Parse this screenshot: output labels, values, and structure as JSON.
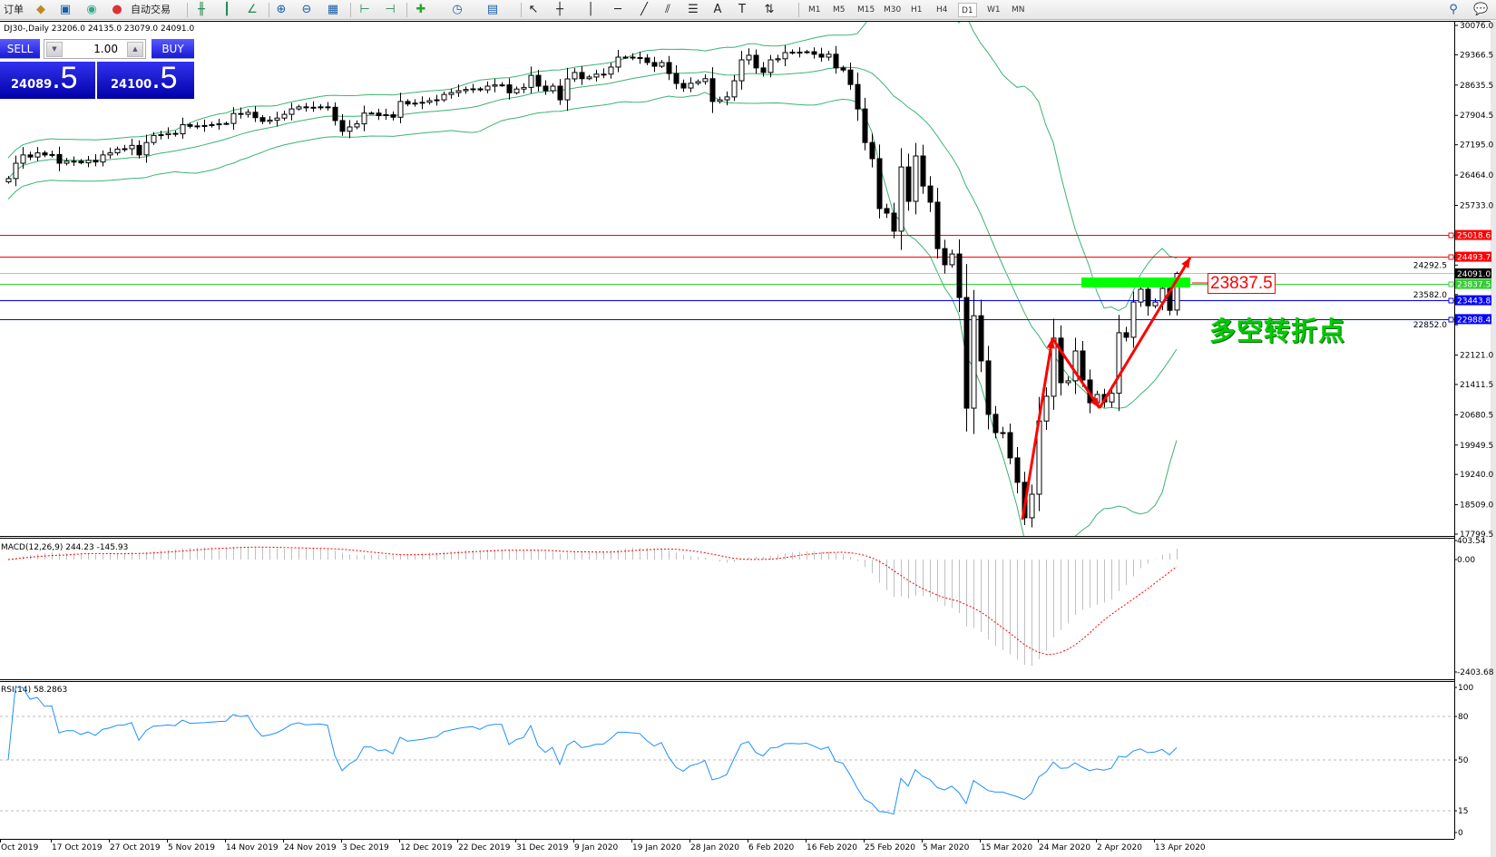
{
  "toolbar": {
    "new_order_label": "订单",
    "autotrade_label": "自动交易",
    "timeframes": [
      "M1",
      "M5",
      "M15",
      "M30",
      "H1",
      "H4",
      "D1",
      "W1",
      "MN"
    ],
    "active_timeframe": "D1",
    "icons": [
      "new-order-icon",
      "market-watch-icon",
      "navigator-icon",
      "signal-icon",
      "autotrade-icon",
      "bar-chart-icon",
      "candlestick-icon",
      "line-chart-icon",
      "zoom-in-icon",
      "zoom-out-icon",
      "tile-windows-icon",
      "chart-shift-icon",
      "autoscroll-icon",
      "indicators-icon",
      "periods-icon",
      "templates-icon",
      "cursor-icon",
      "crosshair-icon",
      "vertical-line-icon",
      "horizontal-line-icon",
      "trendline-icon",
      "channel-icon",
      "fibonacci-icon",
      "text-icon",
      "text-label-icon",
      "arrows-icon",
      "search-icon",
      "chat-icon"
    ]
  },
  "chart": {
    "title": "DJ30-,Daily  23206.0 24135.0 23079.0 24091.0",
    "symbol": "DJ30-",
    "period": "Daily",
    "last_ohlc": {
      "open": 23206.0,
      "high": 24135.0,
      "low": 23079.0,
      "close": 24091.0
    }
  },
  "one_click": {
    "sell_label": "SELL",
    "buy_label": "BUY",
    "lots": "1.00",
    "sell_price_main": "24089",
    "sell_price_frac": ".5",
    "buy_price_main": "24100",
    "buy_price_frac": ".5"
  },
  "price_axis": {
    "labels": [
      "30076.0",
      "29366.5",
      "28635.5",
      "27904.5",
      "27195.0",
      "26464.0",
      "25733.0",
      "24292.5",
      "23582.0",
      "22852.0",
      "22121.0",
      "21411.5",
      "20680.5",
      "19949.5",
      "19240.0",
      "18509.0",
      "17799.5"
    ],
    "range": [
      17799.5,
      30076.0
    ]
  },
  "levels": [
    {
      "value": "25018.6",
      "color": "#ff0000"
    },
    {
      "value": "24493.7",
      "color": "#ff0000"
    },
    {
      "value": "24091.0",
      "color": "#000000",
      "line": "#c0c0c0"
    },
    {
      "value": "23837.5",
      "color": "#33cc33"
    },
    {
      "value": "23443.8",
      "color": "#0000ff"
    },
    {
      "value": "22988.4",
      "color": "#0000ff"
    }
  ],
  "annotations": {
    "price_label": "23837.5",
    "text": "多空转折点",
    "text_color": "#00cc00",
    "arrow_color": "#ff0000",
    "zone_color": "#00ff00"
  },
  "macd": {
    "label": "MACD(12,26,9) 244.23 -145.93",
    "axis": [
      "403.54",
      "0.00",
      "-2403.68"
    ],
    "range": [
      -2403.68,
      403.54
    ]
  },
  "rsi": {
    "label": "RSI(14) 58.2863",
    "axis": [
      "100",
      "80",
      "50",
      "15",
      "0"
    ],
    "levels": [
      80,
      50,
      15
    ],
    "color": "#1e90ff"
  },
  "dates": [
    "Oct 2019",
    "17 Oct 2019",
    "27 Oct 2019",
    "5 Nov 2019",
    "14 Nov 2019",
    "24 Nov 2019",
    "3 Dec 2019",
    "12 Dec 2019",
    "22 Dec 2019",
    "31 Dec 2019",
    "9 Jan 2020",
    "19 Jan 2020",
    "28 Jan 2020",
    "6 Feb 2020",
    "16 Feb 2020",
    "25 Feb 2020",
    "5 Mar 2020",
    "15 Mar 2020",
    "24 Mar 2020",
    "2 Apr 2020",
    "13 Apr 2020"
  ],
  "chart_data": {
    "type": "candlestick",
    "series": [
      {
        "name": "DJ30-",
        "close": [
          26380,
          26750,
          26950,
          26900,
          27000,
          26950,
          26960,
          26750,
          26800,
          26800,
          26760,
          26820,
          26780,
          26950,
          27000,
          27090,
          27100,
          27180,
          26950,
          27250,
          27420,
          27440,
          27470,
          27460,
          27680,
          27640,
          27650,
          27660,
          27680,
          27700,
          27710,
          27950,
          27930,
          27980,
          27850,
          27760,
          27790,
          27840,
          27930,
          28060,
          28110,
          28090,
          28100,
          28110,
          28100,
          27780,
          27520,
          27625,
          27700,
          27960,
          27960,
          27900,
          27920,
          27860,
          28240,
          28180,
          28200,
          28220,
          28260,
          28280,
          28410,
          28455,
          28500,
          28530,
          28545,
          28520,
          28610,
          28640,
          28640,
          28450,
          28540,
          28580,
          28870,
          28610,
          28500,
          28610,
          28280,
          28785,
          28940,
          28790,
          28830,
          28900,
          28900,
          29070,
          29310,
          29310,
          29300,
          29290,
          29180,
          29090,
          29180,
          28915,
          28675,
          28565,
          28680,
          28720,
          28790,
          28240,
          28280,
          28350,
          28740,
          29245,
          29355,
          29050,
          28940,
          29245,
          29270,
          29420,
          29430,
          29420,
          29440,
          29380,
          29310,
          29380,
          29050,
          29000,
          28650,
          28060,
          27250,
          26860,
          25656,
          25546,
          25110,
          26660,
          25830,
          26925,
          26200,
          25810,
          24690,
          24300,
          24560,
          23510,
          20840,
          23070,
          21980,
          20690,
          20250,
          20250,
          19640,
          19050,
          18195,
          18763,
          20530,
          21127,
          22530,
          21454,
          21500,
          22220,
          21520,
          20970,
          21170,
          20990,
          21200,
          22660,
          22550,
          23400,
          23710,
          23310,
          23400,
          23730,
          23200,
          24091
        ]
      }
    ],
    "indicators": [
      "Bollinger Bands(20,2)",
      "MACD(12,26,9)",
      "RSI(14)"
    ],
    "colors": {
      "bull": "#ffffff",
      "bear": "#000000",
      "bands": "#3cb371",
      "macd_hist": "#c0c0c0",
      "macd_signal": "#ff0000"
    }
  }
}
